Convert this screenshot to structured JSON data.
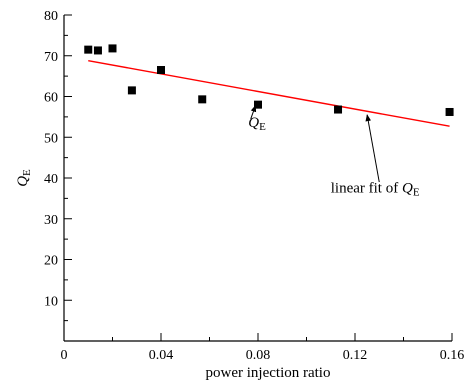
{
  "chart_data": {
    "type": "scatter",
    "xlabel": "power injection ratio",
    "ylabel_main": "Q",
    "ylabel_sub": "E",
    "xlim": [
      0,
      0.16
    ],
    "ylim": [
      0,
      80
    ],
    "x_ticks": [
      "0",
      "0.04",
      "0.08",
      "0.12",
      "0.16"
    ],
    "x_tick_values": [
      0,
      0.04,
      0.08,
      0.12,
      0.16
    ],
    "y_ticks": [
      "10",
      "20",
      "30",
      "40",
      "50",
      "60",
      "70",
      "80"
    ],
    "y_tick_values": [
      10,
      20,
      30,
      40,
      50,
      60,
      70,
      80
    ],
    "grid": false,
    "series": [
      {
        "kind": "points",
        "color": "#000000",
        "x": [
          0.01,
          0.014,
          0.02,
          0.028,
          0.04,
          0.057,
          0.08,
          0.113,
          0.159
        ],
        "y": [
          71.5,
          71.3,
          71.8,
          61.5,
          66.5,
          59.3,
          58.0,
          56.8,
          56.2
        ]
      },
      {
        "kind": "fit-line",
        "color": "#ff0000",
        "x": [
          0.01,
          0.159
        ],
        "y": [
          68.8,
          52.7
        ]
      }
    ],
    "annotations": [
      {
        "main": "Q",
        "sub": "E",
        "prefix": "",
        "text_at": [
          0.076,
          52.5
        ],
        "arrow_from": [
          0.077,
          54.5
        ],
        "arrow_to": [
          0.079,
          57.8
        ]
      },
      {
        "main": "Q",
        "sub": "E",
        "prefix": "linear fit of ",
        "text_at": [
          0.11,
          36.5
        ],
        "arrow_from": [
          0.13,
          39.0
        ],
        "arrow_to": [
          0.125,
          55.5
        ]
      }
    ]
  }
}
